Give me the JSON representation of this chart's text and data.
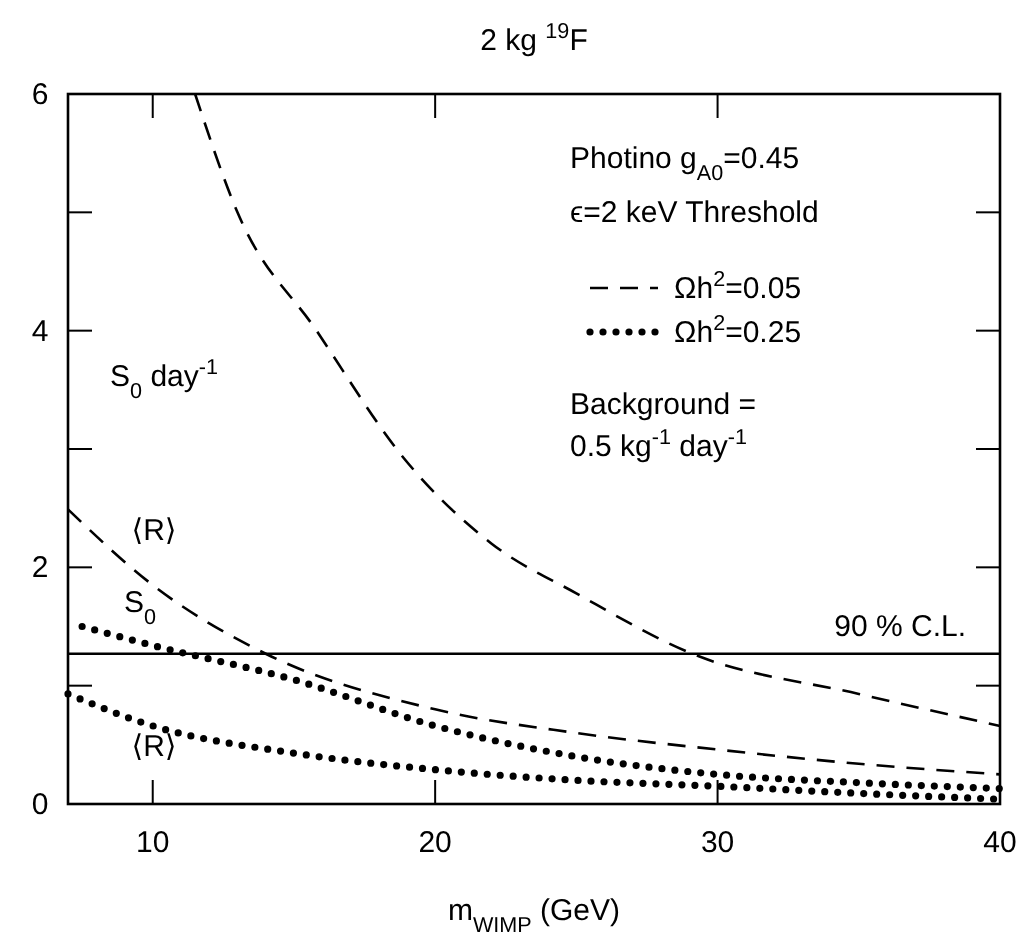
{
  "chart_data": {
    "type": "line",
    "title": "2 kg $^{19}$F",
    "xlabel": "m$_{WIMP}$  (GeV)",
    "xlim": [
      7,
      40
    ],
    "xticks": [
      10,
      20,
      30,
      40
    ],
    "ylim": [
      0,
      6
    ],
    "yticks": [
      0,
      {
        "value": 1,
        "label": null
      },
      2,
      {
        "value": 3,
        "label": null
      },
      4,
      {
        "value": 5,
        "label": null
      },
      6
    ],
    "legend": "top right",
    "grid": false,
    "series": [
      {
        "name": "Ωh$^{2}$=0.05",
        "color": "#000000",
        "line_style": "dashed",
        "x": [
          11.5,
          13,
          15.8,
          18.9,
          22,
          25,
          29.1,
          35,
          40
        ],
        "values": [
          6,
          5,
          4,
          2.92,
          2.2,
          1.78,
          1.27,
          0.93,
          0.66
        ]
      },
      {
        "color": "#000000",
        "line_style": "dashed",
        "x": [
          7,
          10,
          14,
          20,
          25,
          30,
          35,
          40
        ],
        "values": [
          2.49,
          1.85,
          1.27,
          0.8,
          0.6,
          0.46,
          0.34,
          0.25
        ]
      },
      {
        "name": "Ωh$^{2}$=0.25",
        "color": "#000000",
        "line_style": "dotted",
        "x": [
          7.5,
          10,
          15,
          20,
          25,
          30,
          35,
          40
        ],
        "values": [
          1.5,
          1.34,
          1.05,
          0.66,
          0.4,
          0.25,
          0.18,
          0.13
        ]
      },
      {
        "color": "#000000",
        "line_style": "dotted",
        "x": [
          7,
          10,
          15,
          20,
          25,
          30,
          35,
          40
        ],
        "values": [
          0.93,
          0.66,
          0.43,
          0.29,
          0.2,
          0.15,
          0.09,
          0.04
        ]
      }
    ],
    "ref_lines": [
      {
        "axis": "y",
        "value": 1.27,
        "label": "90 % C.L.",
        "color": "#000000",
        "line_style": "solid"
      }
    ],
    "annotations": [
      "Photino g$_{A0}$=0.45",
      "ϵ=2 keV Threshold",
      "Background =",
      "0.5 kg$^{-1}$ day$^{-1}$",
      "S$_{0}$ day$^{-1}$",
      "⟨R⟩",
      "S$_{0}$",
      "⟨R⟩"
    ]
  }
}
